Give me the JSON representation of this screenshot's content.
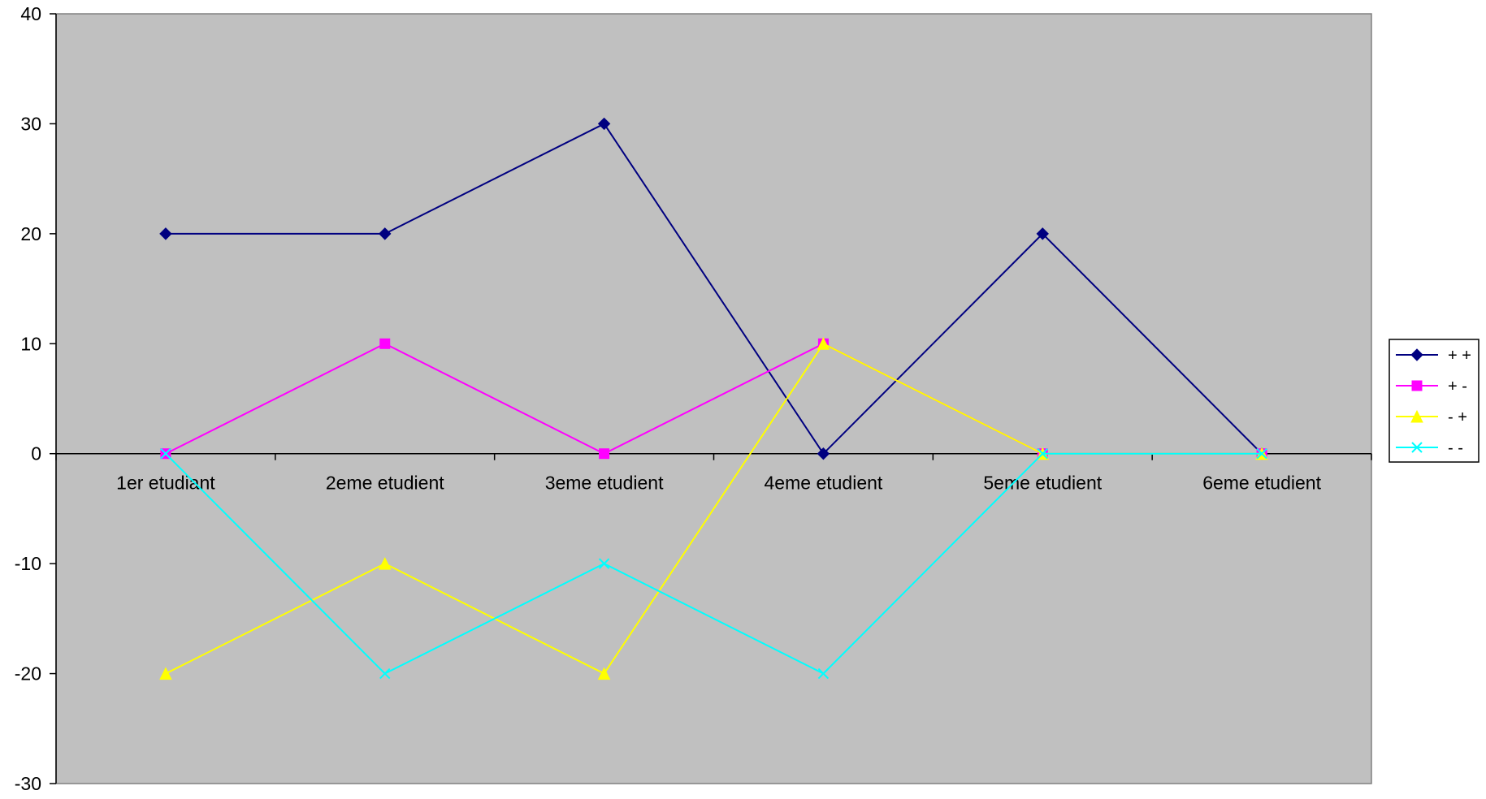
{
  "chart_data": {
    "type": "line",
    "title": "",
    "xlabel": "",
    "ylabel": "",
    "categories": [
      "1er etudiant",
      "2eme etudient",
      "3eme etudient",
      "4eme etudient",
      "5eme etudient",
      "6eme etudient"
    ],
    "ylim": [
      -30,
      40
    ],
    "yticks": [
      -30,
      -20,
      -10,
      0,
      10,
      20,
      30,
      40
    ],
    "grid": false,
    "plot_background": "#C0C0C0",
    "legend_position": "right",
    "series": [
      {
        "name": "+ +",
        "values": [
          20,
          20,
          30,
          0,
          20,
          0
        ],
        "color": "#000080",
        "marker": "diamond"
      },
      {
        "name": "+ -",
        "values": [
          0,
          10,
          0,
          10,
          0,
          0
        ],
        "color": "#FF00FF",
        "marker": "square"
      },
      {
        "name": "- +",
        "values": [
          -20,
          -10,
          -20,
          10,
          0,
          0
        ],
        "color": "#FFFF00",
        "marker": "triangle"
      },
      {
        "name": "- -",
        "values": [
          0,
          -20,
          -10,
          -20,
          0,
          0
        ],
        "color": "#00FFFF",
        "marker": "x"
      }
    ]
  }
}
